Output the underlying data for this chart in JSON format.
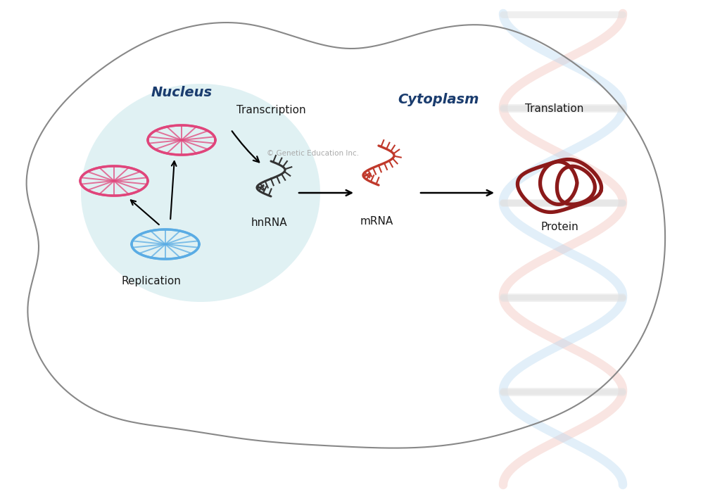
{
  "background_color": "#ffffff",
  "cell_outline_color": "#888888",
  "nucleus_fill_color": "#cce8ec",
  "dna_pink_color": "#e0457b",
  "dna_blue_color": "#5aace4",
  "rna_dark_color": "#333333",
  "mrna_color": "#c0392b",
  "protein_color": "#8b1a1a",
  "arrow_color": "#111111",
  "nucleus_label": "Nucleus",
  "cytoplasm_label": "Cytoplasm",
  "transcription_label": "Transcription",
  "translation_label": "Translation",
  "replication_label": "Replication",
  "hnrna_label": "hnRNA",
  "mrna_label": "mRNA",
  "protein_label": "Protein",
  "copyright_text": "© Genetic Education Inc.",
  "label_color_nucleus": "#1a3c6e",
  "label_color_cytoplasm": "#1a3c6e"
}
